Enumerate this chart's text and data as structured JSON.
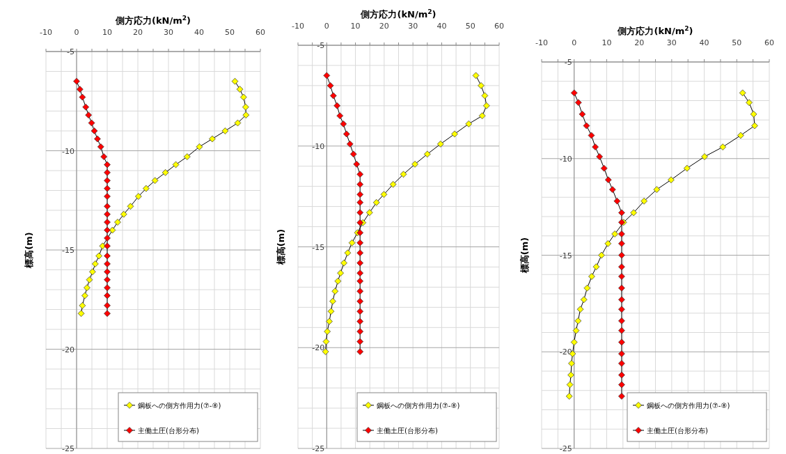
{
  "chart_data": [
    {
      "type": "line",
      "xlabel": "側方応力(kN/m$^{2}$)",
      "ylabel": "標高(m)",
      "xlim": [
        -10,
        60
      ],
      "xticks": [
        -10,
        {
          "value": -5,
          "label": null
        },
        0,
        {
          "value": 5,
          "label": null
        },
        10,
        {
          "value": 15,
          "label": null
        },
        20,
        {
          "value": 25,
          "label": null
        },
        30,
        {
          "value": 35,
          "label": null
        },
        40,
        {
          "value": 45,
          "label": null
        },
        50,
        {
          "value": 55,
          "label": null
        },
        60
      ],
      "ylim": [
        -25,
        -5
      ],
      "yticks": [
        -5,
        {
          "value": -6,
          "label": null
        },
        {
          "value": -7,
          "label": null
        },
        {
          "value": -8,
          "label": null
        },
        {
          "value": -9,
          "label": null
        },
        -10,
        {
          "value": -11,
          "label": null
        },
        {
          "value": -12,
          "label": null
        },
        {
          "value": -13,
          "label": null
        },
        {
          "value": -14,
          "label": null
        },
        -15,
        {
          "value": -16,
          "label": null
        },
        {
          "value": -17,
          "label": null
        },
        {
          "value": -18,
          "label": null
        },
        {
          "value": -19,
          "label": null
        },
        -20,
        {
          "value": -21,
          "label": null
        },
        {
          "value": -22,
          "label": null
        },
        {
          "value": -23,
          "label": null
        },
        {
          "value": -24,
          "label": null
        },
        -25
      ],
      "grid": true,
      "legend": "bottom right",
      "marker": "diamond",
      "series": [
        {
          "name": "鋼板への側方作用力(⑦-⑧)",
          "color": "#ffff00",
          "x": [
            51.7,
            53.3,
            54.5,
            55.2,
            55.3,
            52.6,
            48.5,
            44.3,
            40.1,
            36.1,
            32.4,
            29.0,
            25.6,
            22.7,
            20.2,
            17.6,
            15.4,
            13.4,
            11.7,
            null,
            8.5,
            7.3,
            6.1,
            5.2,
            4.2,
            3.4,
            2.7,
            1.9,
            1.5
          ],
          "values": [
            -6.5,
            -6.9,
            -7.3,
            -7.8,
            -8.2,
            -8.6,
            -9.0,
            -9.4,
            -9.8,
            -10.3,
            -10.7,
            -11.1,
            -11.5,
            -11.9,
            -12.3,
            -12.8,
            -13.2,
            -13.6,
            -14.0,
            null,
            -14.8,
            -15.3,
            -15.7,
            -16.1,
            -16.5,
            -16.9,
            -17.3,
            -17.8,
            -18.2
          ]
        },
        {
          "name": "主働土圧(台形分布)",
          "color": "#ff0000",
          "x": [
            0,
            1.1,
            1.9,
            3.0,
            3.9,
            4.9,
            5.8,
            6.8,
            7.9,
            8.9,
            10,
            10,
            10,
            10,
            10,
            10,
            10,
            10,
            10,
            10,
            10,
            10,
            10,
            10,
            10,
            10,
            10,
            10,
            10
          ],
          "values": [
            -6.5,
            -6.9,
            -7.3,
            -7.8,
            -8.2,
            -8.6,
            -9.0,
            -9.4,
            -9.8,
            -10.3,
            -10.7,
            -11.1,
            -11.5,
            -11.9,
            -12.3,
            -12.8,
            -13.2,
            -13.6,
            -14.0,
            -14.4,
            -14.8,
            -15.3,
            -15.7,
            -16.1,
            -16.5,
            -16.9,
            -17.3,
            -17.8,
            -18.2
          ]
        }
      ]
    },
    {
      "type": "line",
      "xlabel": "側方応力(kN/m$^{2}$)",
      "ylabel": "標高(m)",
      "xlim": [
        -10,
        60
      ],
      "xticks": [
        -10,
        {
          "value": -5,
          "label": null
        },
        0,
        {
          "value": 5,
          "label": null
        },
        10,
        {
          "value": 15,
          "label": null
        },
        20,
        {
          "value": 25,
          "label": null
        },
        30,
        {
          "value": 35,
          "label": null
        },
        40,
        {
          "value": 45,
          "label": null
        },
        50,
        {
          "value": 55,
          "label": null
        },
        60
      ],
      "ylim": [
        -25,
        -5
      ],
      "yticks": [
        -5,
        {
          "value": -6,
          "label": null
        },
        {
          "value": -7,
          "label": null
        },
        {
          "value": -8,
          "label": null
        },
        {
          "value": -9,
          "label": null
        },
        -10,
        {
          "value": -11,
          "label": null
        },
        {
          "value": -12,
          "label": null
        },
        {
          "value": -13,
          "label": null
        },
        {
          "value": -14,
          "label": null
        },
        -15,
        {
          "value": -16,
          "label": null
        },
        {
          "value": -17,
          "label": null
        },
        {
          "value": -18,
          "label": null
        },
        {
          "value": -19,
          "label": null
        },
        -20,
        {
          "value": -21,
          "label": null
        },
        {
          "value": -22,
          "label": null
        },
        {
          "value": -23,
          "label": null
        },
        {
          "value": -24,
          "label": null
        },
        -25
      ],
      "grid": true,
      "legend": "bottom right",
      "marker": "diamond",
      "series": [
        {
          "name": "鋼板への側方作用力(⑦-⑧)",
          "color": "#ffff00",
          "x": [
            51.9,
            53.7,
            55.0,
            55.6,
            54.1,
            49.4,
            44.5,
            39.6,
            35.0,
            30.7,
            26.7,
            23.1,
            19.9,
            17.3,
            14.9,
            12.6,
            10.7,
            8.8,
            7.3,
            6.0,
            4.8,
            3.9,
            2.9,
            2.1,
            1.5,
            0.9,
            0.2,
            -0.2,
            -0.4
          ],
          "values": [
            -6.5,
            -7.0,
            -7.5,
            -8.0,
            -8.5,
            -8.9,
            -9.4,
            -9.9,
            -10.4,
            -10.9,
            -11.4,
            -11.9,
            -12.4,
            -12.8,
            -13.3,
            -13.8,
            -14.3,
            -14.8,
            -15.3,
            -15.8,
            -16.3,
            -16.7,
            -17.2,
            -17.7,
            -18.2,
            -18.7,
            -19.2,
            -19.7,
            -20.2
          ]
        },
        {
          "name": "主働土圧(台形分布)",
          "color": "#ff0000",
          "x": [
            0,
            1.3,
            2.3,
            3.6,
            4.6,
            5.8,
            6.9,
            8.1,
            9.3,
            10.4,
            11.6,
            11.6,
            11.6,
            11.6,
            11.6,
            11.6,
            11.6,
            11.6,
            11.6,
            11.6,
            11.6,
            11.6,
            11.6,
            11.6,
            11.6,
            11.6,
            11.6,
            11.6,
            11.6
          ],
          "values": [
            -6.5,
            -7.0,
            -7.5,
            -8.0,
            -8.5,
            -8.9,
            -9.4,
            -9.9,
            -10.4,
            -10.9,
            -11.4,
            -11.9,
            -12.4,
            -12.8,
            -13.3,
            -13.8,
            -14.3,
            -14.8,
            -15.3,
            -15.8,
            -16.3,
            -16.7,
            -17.2,
            -17.7,
            -18.2,
            -18.7,
            -19.2,
            -19.7,
            -20.2
          ]
        }
      ]
    },
    {
      "type": "line",
      "xlabel": "側方応力(kN/m$^{2}$)",
      "ylabel": "標高(m)",
      "xlim": [
        -10,
        60
      ],
      "xticks": [
        -10,
        {
          "value": -5,
          "label": null
        },
        0,
        {
          "value": 5,
          "label": null
        },
        10,
        {
          "value": 15,
          "label": null
        },
        20,
        {
          "value": 25,
          "label": null
        },
        30,
        {
          "value": 35,
          "label": null
        },
        40,
        {
          "value": 45,
          "label": null
        },
        50,
        {
          "value": 55,
          "label": null
        },
        60
      ],
      "ylim": [
        -25,
        -5
      ],
      "yticks": [
        -5,
        {
          "value": -6,
          "label": null
        },
        {
          "value": -7,
          "label": null
        },
        {
          "value": -8,
          "label": null
        },
        {
          "value": -9,
          "label": null
        },
        -10,
        {
          "value": -11,
          "label": null
        },
        {
          "value": -12,
          "label": null
        },
        {
          "value": -13,
          "label": null
        },
        {
          "value": -14,
          "label": null
        },
        -15,
        {
          "value": -16,
          "label": null
        },
        {
          "value": -17,
          "label": null
        },
        {
          "value": -18,
          "label": null
        },
        {
          "value": -19,
          "label": null
        },
        -20,
        {
          "value": -21,
          "label": null
        },
        {
          "value": -22,
          "label": null
        },
        {
          "value": -23,
          "label": null
        },
        {
          "value": -24,
          "label": null
        },
        -25
      ],
      "grid": true,
      "legend": "bottom right",
      "marker": "diamond",
      "series": [
        {
          "name": "鋼板への側方作用力(⑦-⑧)",
          "color": "#ffff00",
          "x": [
            51.8,
            53.8,
            55.2,
            55.5,
            51.2,
            45.7,
            40.1,
            34.7,
            29.8,
            25.4,
            21.5,
            18.3,
            15.2,
            12.5,
            10.4,
            8.4,
            6.8,
            5.4,
            4.0,
            3.0,
            1.9,
            1.2,
            0.6,
            0.0,
            -0.5,
            -0.8,
            -1.0,
            -1.3,
            -1.5
          ],
          "values": [
            -6.6,
            -7.1,
            -7.7,
            -8.3,
            -8.8,
            -9.4,
            -9.9,
            -10.5,
            -11.1,
            -11.6,
            -12.2,
            -12.8,
            -13.3,
            -13.9,
            -14.4,
            -15.0,
            -15.6,
            -16.1,
            -16.7,
            -17.3,
            -17.8,
            -18.4,
            -18.9,
            -19.5,
            -20.1,
            -20.6,
            -21.2,
            -21.7,
            -22.3
          ]
        },
        {
          "name": "主働土圧(台形分布)",
          "color": "#ff0000",
          "x": [
            0,
            1.3,
            2.5,
            3.8,
            5.3,
            6.5,
            7.8,
            9.2,
            10.5,
            11.8,
            13.2,
            14.6,
            14.6,
            14.6,
            14.6,
            14.6,
            14.6,
            14.6,
            14.6,
            14.6,
            14.6,
            14.6,
            14.6,
            14.6,
            14.6,
            14.6,
            14.6,
            14.6,
            14.6
          ],
          "values": [
            -6.6,
            -7.1,
            -7.7,
            -8.3,
            -8.8,
            -9.4,
            -9.9,
            -10.5,
            -11.1,
            -11.6,
            -12.2,
            -12.8,
            -13.3,
            -13.9,
            -14.4,
            -15.0,
            -15.6,
            -16.1,
            -16.7,
            -17.3,
            -17.8,
            -18.4,
            -18.9,
            -19.5,
            -20.1,
            -20.6,
            -21.2,
            -21.7,
            -22.3
          ]
        }
      ]
    }
  ]
}
